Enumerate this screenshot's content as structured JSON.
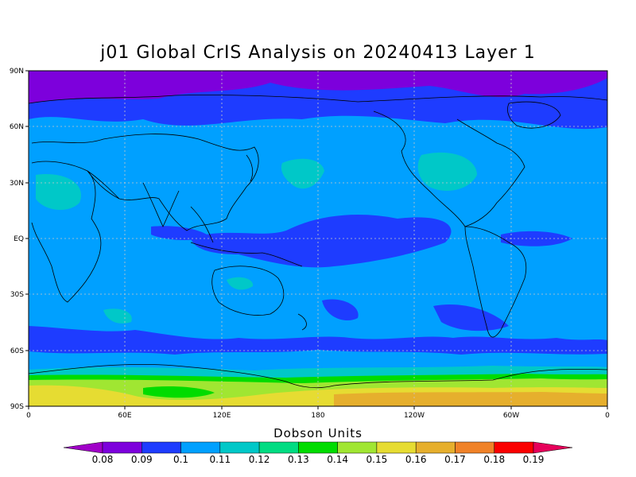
{
  "title": "j01 Global CrIS Analysis on 20240413 Layer 1",
  "lat_ticks": [
    "90N",
    "60N",
    "30N",
    "EQ",
    "30S",
    "60S",
    "90S"
  ],
  "lon_ticks": [
    "0",
    "60E",
    "120E",
    "180",
    "120W",
    "60W",
    "0"
  ],
  "colorbar": {
    "title": "Dobson Units",
    "labels": [
      "0.08",
      "0.09",
      "0.1",
      "0.11",
      "0.12",
      "0.13",
      "0.14",
      "0.15",
      "0.16",
      "0.17",
      "0.18",
      "0.19"
    ],
    "colors": [
      "#a000c8",
      "#7d00dc",
      "#1e3cff",
      "#00a0ff",
      "#00c8c8",
      "#00dc82",
      "#00dc00",
      "#a0e632",
      "#e6dc32",
      "#e6af2d",
      "#f08228",
      "#fa0000",
      "#e6005a"
    ]
  },
  "chart_data": {
    "type": "heatmap",
    "title": "j01 Global CrIS Analysis on 20240413 Layer 1",
    "colorbar_label": "Dobson Units",
    "x_range": [
      "0",
      "0 (360)"
    ],
    "y_range": [
      "90S",
      "90N"
    ],
    "levels": [
      0.08,
      0.09,
      0.1,
      0.11,
      0.12,
      0.13,
      0.14,
      0.15,
      0.16,
      0.17,
      0.18,
      0.19
    ],
    "zonal_bands": [
      {
        "lat_range": [
          75,
          90
        ],
        "approx_value": 0.085
      },
      {
        "lat_range": [
          60,
          75
        ],
        "approx_value": 0.095
      },
      {
        "lat_range": [
          -50,
          60
        ],
        "approx_value": 0.105
      },
      {
        "lat_range": [
          -62,
          -50
        ],
        "approx_value": 0.095
      },
      {
        "lat_range": [
          -72,
          -62
        ],
        "approx_value": 0.105
      },
      {
        "lat_range": [
          -78,
          -72
        ],
        "approx_value": 0.135
      },
      {
        "lat_range": [
          -90,
          -78
        ],
        "approx_value": 0.155
      }
    ],
    "grid": true
  }
}
